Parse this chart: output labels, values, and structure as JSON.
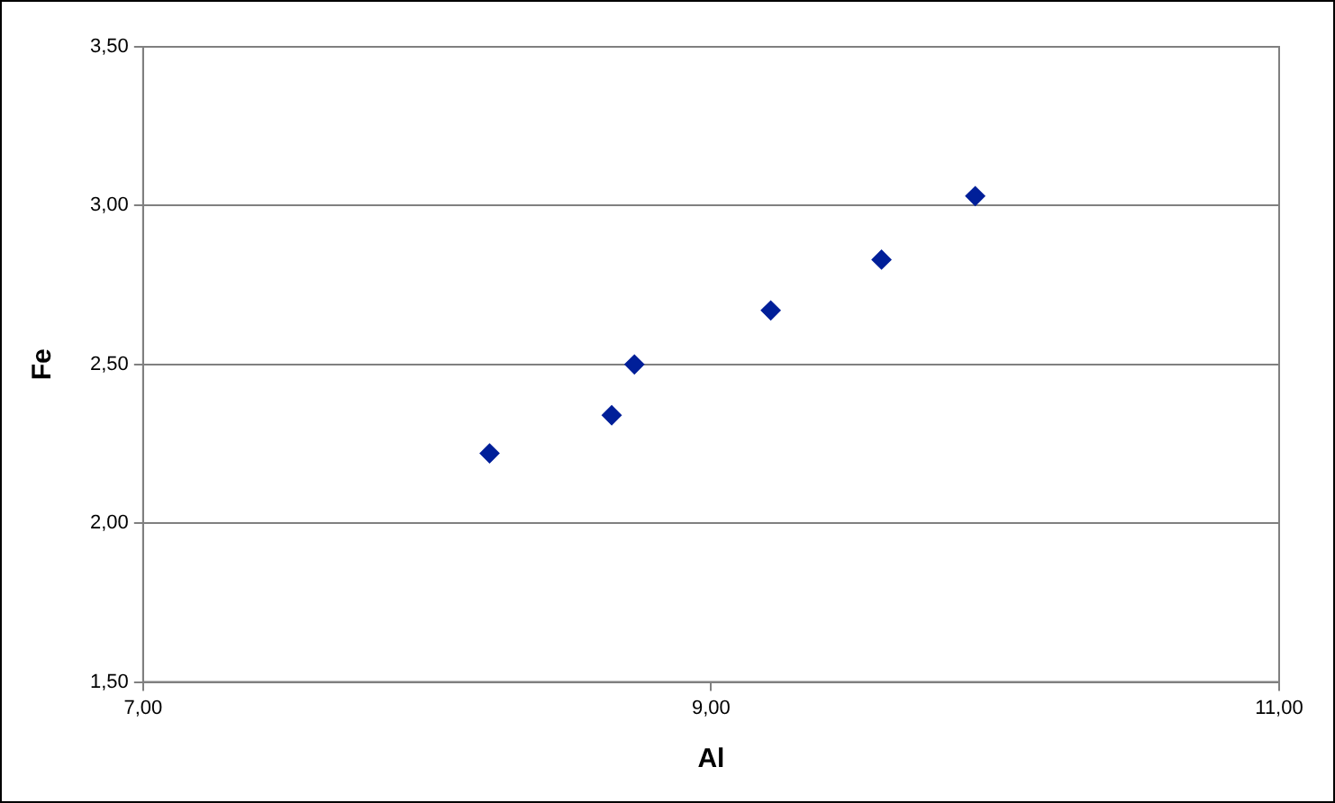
{
  "chart_data": {
    "type": "scatter",
    "xlabel": "Al",
    "ylabel": "Fe",
    "x": [
      8.22,
      8.65,
      8.73,
      9.21,
      9.6,
      9.93
    ],
    "series": [
      {
        "color": "#001f99",
        "values": [
          2.22,
          2.34,
          2.5,
          2.67,
          2.83,
          3.03
        ]
      }
    ],
    "xlim": [
      7,
      11
    ],
    "xticks": [
      {
        "value": 7,
        "label": "7,00"
      },
      {
        "value": 9,
        "label": "9,00"
      },
      {
        "value": 11,
        "label": "11,00"
      }
    ],
    "ylim": [
      1.5,
      3.5
    ],
    "yticks": [
      {
        "value": 1.5,
        "label": "1,50"
      },
      {
        "value": 2,
        "label": "2,00"
      },
      {
        "value": 2.5,
        "label": "2,50"
      },
      {
        "value": 3,
        "label": "3,00"
      },
      {
        "value": 3.5,
        "label": "3,50"
      }
    ],
    "grid": "y",
    "legend": false,
    "marker": "diamond"
  }
}
